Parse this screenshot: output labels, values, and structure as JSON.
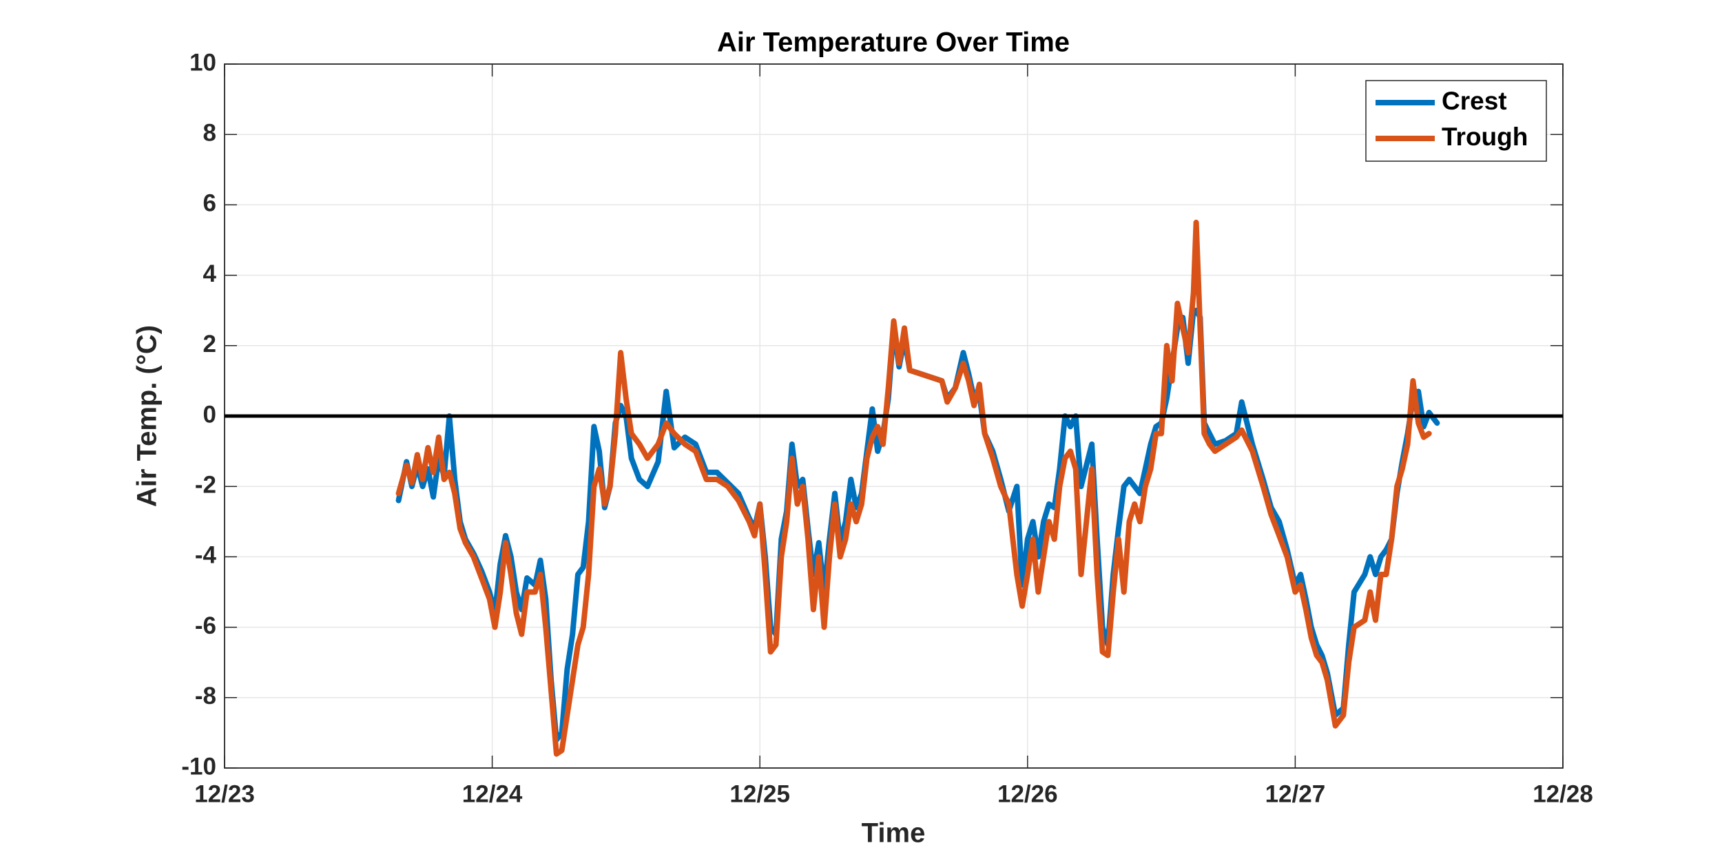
{
  "chart_data": {
    "type": "line",
    "title": "Air Temperature Over Time",
    "x_label": "Time",
    "y_label": "Air Temp. (°C)",
    "xlim": [
      23,
      28
    ],
    "xticks": [
      {
        "value": 23,
        "label": "12/23"
      },
      {
        "value": 24,
        "label": "12/24"
      },
      {
        "value": 25,
        "label": "12/25"
      },
      {
        "value": 26,
        "label": "12/26"
      },
      {
        "value": 27,
        "label": "12/27"
      },
      {
        "value": 28,
        "label": "12/28"
      }
    ],
    "ylim": [
      -10,
      10
    ],
    "yticks": [
      -10,
      -8,
      -6,
      -4,
      -2,
      0,
      2,
      4,
      6,
      8,
      10
    ],
    "grid": true,
    "hline": 0,
    "legend": "upper right",
    "x": [
      23.65,
      23.68,
      23.7,
      23.72,
      23.74,
      23.76,
      23.78,
      23.8,
      23.82,
      23.84,
      23.86,
      23.88,
      23.9,
      23.93,
      23.96,
      23.99,
      24.01,
      24.03,
      24.05,
      24.07,
      24.09,
      24.11,
      24.13,
      24.16,
      24.18,
      24.2,
      24.22,
      24.24,
      24.26,
      24.28,
      24.3,
      24.32,
      24.34,
      24.36,
      24.38,
      24.4,
      24.42,
      24.44,
      24.46,
      24.48,
      24.5,
      24.52,
      24.55,
      24.58,
      24.62,
      24.65,
      24.68,
      24.72,
      24.76,
      24.8,
      24.84,
      24.88,
      24.92,
      24.96,
      24.98,
      25.0,
      25.02,
      25.04,
      25.06,
      25.08,
      25.1,
      25.12,
      25.14,
      25.16,
      25.18,
      25.2,
      25.22,
      25.24,
      25.26,
      25.28,
      25.3,
      25.32,
      25.34,
      25.36,
      25.38,
      25.4,
      25.42,
      25.44,
      25.46,
      25.48,
      25.5,
      25.52,
      25.54,
      25.56,
      25.6,
      25.64,
      25.68,
      25.7,
      25.73,
      25.76,
      25.78,
      25.8,
      25.82,
      25.84,
      25.87,
      25.9,
      25.93,
      25.96,
      25.98,
      26.0,
      26.02,
      26.04,
      26.06,
      26.08,
      26.1,
      26.12,
      26.14,
      26.16,
      26.18,
      26.2,
      26.22,
      26.24,
      26.26,
      26.28,
      26.3,
      26.32,
      26.34,
      26.36,
      26.38,
      26.4,
      26.42,
      26.44,
      26.46,
      26.48,
      26.5,
      26.52,
      26.54,
      26.56,
      26.58,
      26.6,
      26.62,
      26.63,
      26.645,
      26.66,
      26.68,
      26.7,
      26.74,
      26.78,
      26.8,
      26.84,
      26.86,
      26.88,
      26.91,
      26.94,
      26.97,
      27.0,
      27.02,
      27.04,
      27.06,
      27.08,
      27.1,
      27.12,
      27.15,
      27.18,
      27.2,
      27.22,
      27.26,
      27.28,
      27.3,
      27.32,
      27.34,
      27.36,
      27.38,
      27.4,
      27.42,
      27.44,
      27.46,
      27.48,
      27.5,
      27.53
    ],
    "series": [
      {
        "name": "Crest",
        "color": "#0072bd",
        "values": [
          -2.4,
          -1.3,
          -2.0,
          -1.4,
          -2.0,
          -1.5,
          -2.3,
          -1.2,
          -1.7,
          0.0,
          -1.8,
          -3.0,
          -3.5,
          -3.9,
          -4.4,
          -5.0,
          -5.6,
          -4.2,
          -3.4,
          -4.0,
          -5.0,
          -5.5,
          -4.6,
          -4.8,
          -4.1,
          -5.2,
          -7.5,
          -9.2,
          -9.0,
          -7.2,
          -6.2,
          -4.5,
          -4.3,
          -3.0,
          -0.3,
          -1.0,
          -2.6,
          -2.0,
          -0.2,
          0.3,
          0.0,
          -1.2,
          -1.8,
          -2.0,
          -1.3,
          0.7,
          -0.9,
          -0.6,
          -0.8,
          -1.6,
          -1.6,
          -1.9,
          -2.2,
          -2.9,
          -3.2,
          -2.5,
          -4.0,
          -6.0,
          -6.2,
          -3.5,
          -2.7,
          -0.8,
          -2.0,
          -1.8,
          -3.2,
          -4.5,
          -3.6,
          -5.0,
          -3.5,
          -2.2,
          -3.6,
          -3.0,
          -1.8,
          -2.6,
          -2.2,
          -1.0,
          0.2,
          -1.0,
          -0.5,
          0.5,
          2.5,
          1.4,
          2.2,
          1.3,
          1.2,
          1.1,
          1.0,
          0.5,
          0.8,
          1.8,
          1.2,
          0.5,
          0.6,
          -0.5,
          -1.0,
          -1.8,
          -2.7,
          -2.0,
          -4.8,
          -3.5,
          -3.0,
          -4.0,
          -3.0,
          -2.5,
          -2.6,
          -1.5,
          0.0,
          -0.3,
          0.0,
          -2.0,
          -1.4,
          -0.8,
          -3.5,
          -6.0,
          -6.5,
          -4.5,
          -3.2,
          -2.0,
          -1.8,
          -2.0,
          -2.2,
          -1.5,
          -0.8,
          -0.3,
          -0.2,
          0.5,
          1.5,
          2.5,
          2.8,
          1.5,
          3.0,
          3.0,
          2.8,
          -0.2,
          -0.5,
          -0.8,
          -0.7,
          -0.5,
          0.4,
          -0.8,
          -1.3,
          -1.8,
          -2.6,
          -3.0,
          -3.8,
          -4.8,
          -4.5,
          -5.2,
          -6.0,
          -6.5,
          -6.8,
          -7.3,
          -8.5,
          -8.3,
          -6.5,
          -5.0,
          -4.5,
          -4.0,
          -4.5,
          -4.0,
          -3.8,
          -3.5,
          -2.2,
          -1.3,
          -0.5,
          0.5,
          0.7,
          -0.3,
          0.1,
          -0.2
        ]
      },
      {
        "name": "Trough",
        "color": "#d95319",
        "values": [
          -2.2,
          -1.4,
          -1.9,
          -1.1,
          -1.8,
          -0.9,
          -1.6,
          -0.6,
          -1.8,
          -1.6,
          -2.2,
          -3.2,
          -3.6,
          -4.0,
          -4.6,
          -5.2,
          -6.0,
          -5.0,
          -3.6,
          -4.5,
          -5.6,
          -6.2,
          -5.0,
          -5.0,
          -4.5,
          -6.0,
          -7.8,
          -9.6,
          -9.5,
          -8.5,
          -7.5,
          -6.5,
          -6.0,
          -4.5,
          -2.0,
          -1.5,
          -2.5,
          -2.0,
          -0.5,
          1.8,
          0.5,
          -0.5,
          -0.8,
          -1.2,
          -0.8,
          -0.2,
          -0.5,
          -0.8,
          -1.0,
          -1.8,
          -1.8,
          -2.0,
          -2.4,
          -3.0,
          -3.4,
          -2.5,
          -4.5,
          -6.7,
          -6.5,
          -4.0,
          -3.0,
          -1.2,
          -2.5,
          -2.0,
          -3.5,
          -5.5,
          -4.0,
          -6.0,
          -4.0,
          -2.5,
          -4.0,
          -3.5,
          -2.5,
          -3.0,
          -2.5,
          -1.2,
          -0.6,
          -0.3,
          -0.8,
          0.8,
          2.7,
          1.5,
          2.5,
          1.3,
          1.2,
          1.1,
          1.0,
          0.4,
          0.8,
          1.5,
          1.0,
          0.3,
          0.9,
          -0.5,
          -1.2,
          -2.0,
          -2.5,
          -4.5,
          -5.4,
          -4.5,
          -3.5,
          -5.0,
          -4.0,
          -3.0,
          -3.5,
          -2.0,
          -1.2,
          -1.0,
          -1.5,
          -4.5,
          -3.0,
          -1.5,
          -4.5,
          -6.7,
          -6.8,
          -5.0,
          -3.5,
          -5.0,
          -3.0,
          -2.5,
          -3.0,
          -2.0,
          -1.5,
          -0.5,
          -0.5,
          2.0,
          1.0,
          3.2,
          2.5,
          1.8,
          3.5,
          5.5,
          2.5,
          -0.5,
          -0.8,
          -1.0,
          -0.8,
          -0.6,
          -0.4,
          -1.0,
          -1.5,
          -2.0,
          -2.8,
          -3.4,
          -4.0,
          -5.0,
          -4.8,
          -5.5,
          -6.3,
          -6.8,
          -7.0,
          -7.5,
          -8.8,
          -8.5,
          -7.0,
          -6.0,
          -5.8,
          -5.0,
          -5.8,
          -4.5,
          -4.5,
          -3.5,
          -2.0,
          -1.5,
          -0.8,
          1.0,
          -0.2,
          -0.6,
          -0.5,
          null
        ]
      }
    ]
  }
}
